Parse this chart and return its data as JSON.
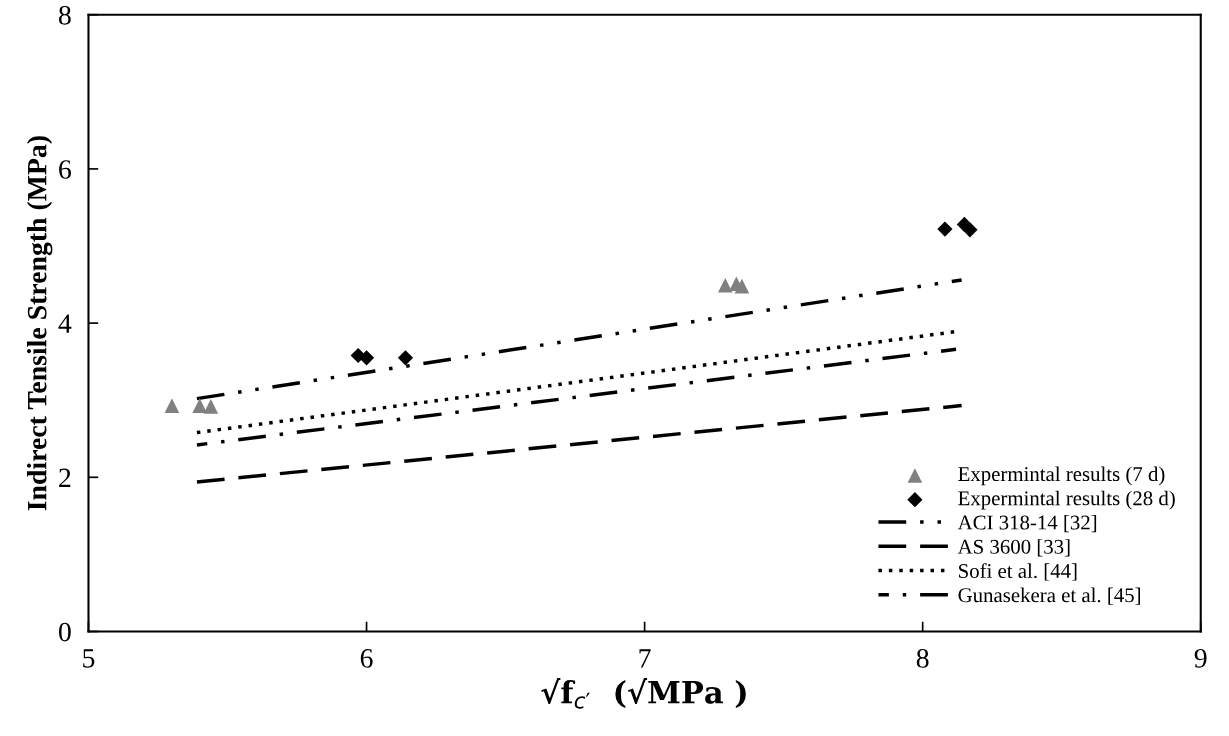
{
  "chart_data": {
    "type": "scatter",
    "xlabel": "√f$_{c′}$  (√MPa )",
    "ylabel": "Indirect Tensile Strength (MPa)",
    "xlim": [
      5,
      9
    ],
    "ylim": [
      0,
      8
    ],
    "xticks": [
      5,
      6,
      7,
      8,
      9
    ],
    "yticks": [
      0,
      2,
      4,
      6,
      8
    ],
    "grid": false,
    "legend": "bottom right",
    "series": [
      {
        "name": "Expermintal results (7 d)",
        "marker": "triangle",
        "color": "#808080",
        "x": [
          5.3,
          5.4,
          5.44,
          7.29,
          7.33,
          7.35
        ],
        "values": [
          2.93,
          2.93,
          2.92,
          4.49,
          4.51,
          4.48
        ]
      },
      {
        "name": "Expermintal results (28 d)",
        "marker": "diamond",
        "color": "#000000",
        "x": [
          5.97,
          6.0,
          6.14,
          8.08,
          8.15,
          8.17
        ],
        "values": [
          3.58,
          3.55,
          3.55,
          5.22,
          5.28,
          5.21
        ]
      },
      {
        "name": "ACI 318-14 [32]",
        "type": "line",
        "line_style": "dashdotdot",
        "color": "#000000",
        "x": [
          5.39,
          8.14
        ],
        "values": [
          3.02,
          4.56
        ]
      },
      {
        "name": "AS 3600 [33]",
        "type": "line",
        "line_style": "dashed",
        "color": "#000000",
        "x": [
          5.39,
          8.14
        ],
        "values": [
          1.94,
          2.93
        ]
      },
      {
        "name": "Sofi et al. [44]",
        "type": "line",
        "line_style": "dotted",
        "color": "#000000",
        "x": [
          5.39,
          8.12
        ],
        "values": [
          2.58,
          3.89
        ]
      },
      {
        "name": "Gunasekera et al. [45]",
        "type": "line",
        "line_style": "dashdot",
        "color": "#000000",
        "x": [
          5.39,
          8.12
        ],
        "values": [
          2.42,
          3.66
        ]
      }
    ]
  }
}
